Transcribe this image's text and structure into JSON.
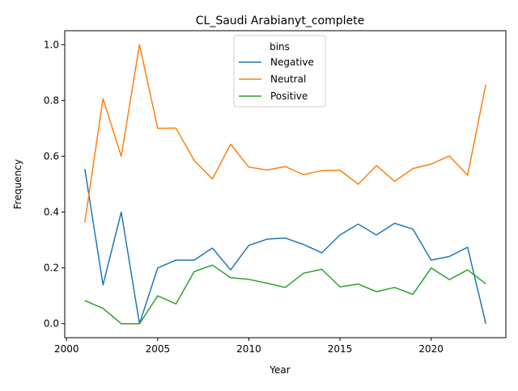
{
  "chart_data": {
    "type": "line",
    "title": "CL_Saudi Arabianyt_complete",
    "xlabel": "Year",
    "ylabel": "Frequency",
    "xlim": [
      1999.9,
      2024.1
    ],
    "ylim": [
      -0.05,
      1.05
    ],
    "xticks": [
      2000,
      2005,
      2010,
      2015,
      2020
    ],
    "yticks": [
      0.0,
      0.2,
      0.4,
      0.6,
      0.8,
      1.0
    ],
    "x": [
      2001,
      2002,
      2003,
      2004,
      2005,
      2006,
      2007,
      2008,
      2009,
      2010,
      2011,
      2012,
      2013,
      2014,
      2015,
      2016,
      2017,
      2018,
      2019,
      2020,
      2021,
      2022,
      2023
    ],
    "legend": {
      "title": "bins",
      "placement": "upper center"
    },
    "grid": false,
    "series": [
      {
        "name": "Negative",
        "color": "#1f77b4",
        "values": [
          0.555,
          0.139,
          0.4,
          0.0,
          0.2,
          0.228,
          0.228,
          0.271,
          0.193,
          0.281,
          0.303,
          0.307,
          0.284,
          0.254,
          0.318,
          0.357,
          0.318,
          0.36,
          0.339,
          0.228,
          0.241,
          0.274,
          0.0
        ]
      },
      {
        "name": "Neutral",
        "color": "#ff7f0e",
        "values": [
          0.362,
          0.806,
          0.6,
          1.0,
          0.7,
          0.701,
          0.585,
          0.519,
          0.643,
          0.561,
          0.551,
          0.563,
          0.534,
          0.549,
          0.55,
          0.5,
          0.567,
          0.51,
          0.556,
          0.572,
          0.601,
          0.532,
          0.857
        ]
      },
      {
        "name": "Positive",
        "color": "#2ca02c",
        "values": [
          0.083,
          0.055,
          0.0,
          0.0,
          0.1,
          0.071,
          0.187,
          0.21,
          0.165,
          0.159,
          0.145,
          0.13,
          0.181,
          0.195,
          0.132,
          0.142,
          0.115,
          0.13,
          0.105,
          0.2,
          0.158,
          0.193,
          0.143
        ]
      }
    ]
  }
}
